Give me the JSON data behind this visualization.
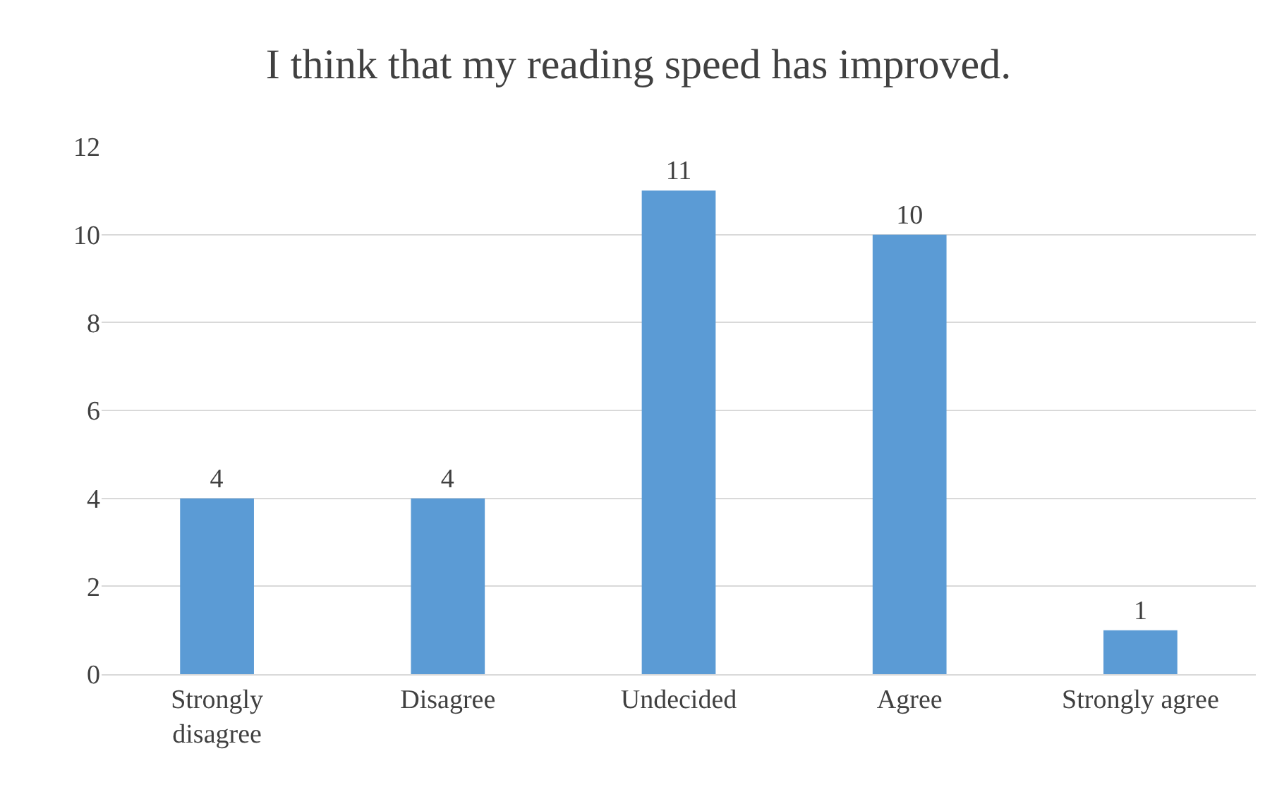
{
  "chart_data": {
    "type": "bar",
    "title": "I think that my reading speed has improved.",
    "categories": [
      "Strongly disagree",
      "Disagree",
      "Undecided",
      "Agree",
      "Strongly agree"
    ],
    "values": [
      4,
      4,
      11,
      10,
      1
    ],
    "color": "#5b9bd5",
    "ylim": [
      0,
      12
    ],
    "yticks": [
      0,
      2,
      4,
      6,
      8,
      10,
      12
    ],
    "grid": "y",
    "data_labels": true
  }
}
